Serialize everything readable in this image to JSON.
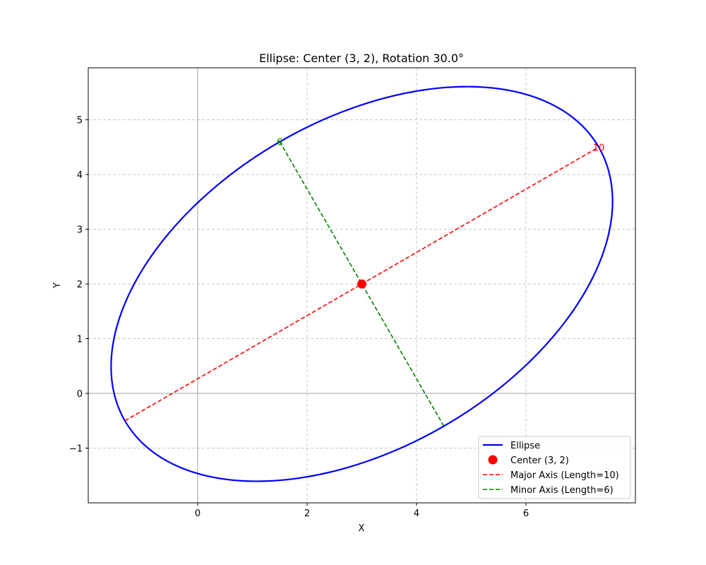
{
  "chart_data": {
    "type": "line",
    "title": "Ellipse: Center (3, 2), Rotation 30.0°",
    "xlabel": "X",
    "ylabel": "Y",
    "xlim": [
      -2.0,
      8.0
    ],
    "ylim": [
      -2.0,
      5.95
    ],
    "xticks": [
      0,
      2,
      4,
      6
    ],
    "yticks": [
      -1,
      0,
      1,
      2,
      3,
      4,
      5
    ],
    "grid": true,
    "legend_position": "lower-right",
    "ellipse": {
      "center": [
        3,
        2
      ],
      "semi_major": 5,
      "semi_minor": 3,
      "rotation_deg": 30.0
    },
    "series": [
      {
        "name": "Ellipse",
        "style": "solid-line",
        "color": "#0000ff"
      },
      {
        "name": "Center (3, 2)",
        "style": "marker",
        "color": "#ff0000",
        "points": [
          [
            3,
            2
          ]
        ]
      },
      {
        "name": "Major Axis (Length=10)",
        "style": "dashed-line",
        "color": "#ff0000",
        "points": [
          [
            -1.33,
            -0.5
          ],
          [
            7.33,
            4.5
          ]
        ]
      },
      {
        "name": "Minor Axis (Length=6)",
        "style": "dashed-line",
        "color": "#008000",
        "points": [
          [
            1.5,
            4.6
          ],
          [
            4.5,
            -0.6
          ]
        ]
      }
    ],
    "annotations": [
      {
        "text": "10",
        "x": 7.33,
        "y": 4.5,
        "color": "#ff0000"
      },
      {
        "text": "6",
        "x": 1.5,
        "y": 4.6,
        "color": "#008000"
      }
    ]
  }
}
